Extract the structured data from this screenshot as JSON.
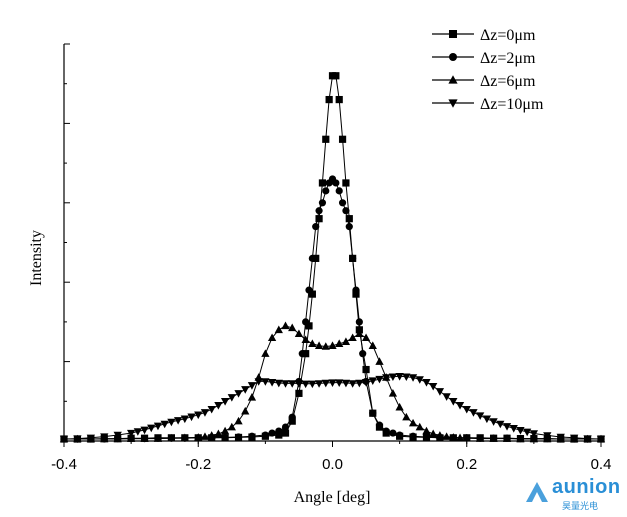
{
  "chart_data": {
    "type": "line",
    "xlabel": "Angle [deg]",
    "ylabel": "Intensity",
    "xlim": [
      -0.4,
      0.4
    ],
    "ylim": [
      0,
      1.0
    ],
    "x_ticks": [
      -0.4,
      -0.2,
      0.0,
      0.2,
      0.4
    ],
    "x_tick_labels": [
      "-0.4",
      "-0.2",
      "0.0",
      "0.2",
      "0.4"
    ],
    "legend_position": "top-right",
    "grid": false,
    "marker_color": "#000000",
    "series": [
      {
        "name": "Δz=0μm",
        "marker": "square",
        "x": [
          -0.4,
          -0.38,
          -0.36,
          -0.34,
          -0.32,
          -0.3,
          -0.28,
          -0.26,
          -0.24,
          -0.22,
          -0.2,
          -0.18,
          -0.16,
          -0.14,
          -0.12,
          -0.1,
          -0.08,
          -0.07,
          -0.06,
          -0.05,
          -0.04,
          -0.035,
          -0.03,
          -0.025,
          -0.02,
          -0.015,
          -0.01,
          -0.005,
          0.0,
          0.005,
          0.01,
          0.015,
          0.02,
          0.025,
          0.03,
          0.035,
          0.04,
          0.05,
          0.06,
          0.07,
          0.08,
          0.1,
          0.12,
          0.14,
          0.16,
          0.18,
          0.2,
          0.22,
          0.24,
          0.26,
          0.28,
          0.3,
          0.32,
          0.34,
          0.36,
          0.38,
          0.4
        ],
        "y": [
          0.005,
          0.005,
          0.005,
          0.006,
          0.006,
          0.007,
          0.007,
          0.008,
          0.008,
          0.008,
          0.008,
          0.008,
          0.008,
          0.009,
          0.01,
          0.012,
          0.015,
          0.02,
          0.05,
          0.12,
          0.22,
          0.29,
          0.37,
          0.46,
          0.56,
          0.65,
          0.76,
          0.86,
          0.92,
          0.92,
          0.86,
          0.76,
          0.65,
          0.56,
          0.46,
          0.37,
          0.28,
          0.18,
          0.07,
          0.035,
          0.02,
          0.012,
          0.01,
          0.009,
          0.008,
          0.008,
          0.008,
          0.008,
          0.007,
          0.007,
          0.006,
          0.006,
          0.006,
          0.005,
          0.005,
          0.005,
          0.005
        ]
      },
      {
        "name": "Δz=2μm",
        "marker": "circle",
        "x": [
          -0.4,
          -0.38,
          -0.36,
          -0.34,
          -0.32,
          -0.3,
          -0.28,
          -0.26,
          -0.24,
          -0.22,
          -0.2,
          -0.18,
          -0.16,
          -0.14,
          -0.12,
          -0.1,
          -0.09,
          -0.08,
          -0.07,
          -0.06,
          -0.05,
          -0.045,
          -0.04,
          -0.035,
          -0.03,
          -0.025,
          -0.02,
          -0.015,
          -0.01,
          -0.005,
          0.0,
          0.005,
          0.01,
          0.015,
          0.02,
          0.025,
          0.03,
          0.035,
          0.04,
          0.045,
          0.05,
          0.06,
          0.07,
          0.08,
          0.09,
          0.1,
          0.12,
          0.14,
          0.16,
          0.18,
          0.2,
          0.22,
          0.24,
          0.26,
          0.28,
          0.3,
          0.32,
          0.34,
          0.36,
          0.38,
          0.4
        ],
        "y": [
          0.005,
          0.005,
          0.005,
          0.005,
          0.006,
          0.006,
          0.006,
          0.007,
          0.007,
          0.007,
          0.008,
          0.008,
          0.009,
          0.01,
          0.012,
          0.015,
          0.02,
          0.025,
          0.035,
          0.06,
          0.15,
          0.22,
          0.3,
          0.38,
          0.46,
          0.54,
          0.58,
          0.6,
          0.63,
          0.65,
          0.66,
          0.65,
          0.63,
          0.6,
          0.58,
          0.54,
          0.46,
          0.38,
          0.3,
          0.22,
          0.15,
          0.07,
          0.04,
          0.025,
          0.02,
          0.015,
          0.012,
          0.01,
          0.009,
          0.008,
          0.008,
          0.007,
          0.007,
          0.007,
          0.006,
          0.006,
          0.006,
          0.005,
          0.005,
          0.005,
          0.005
        ]
      },
      {
        "name": "Δz=6μm",
        "marker": "triangle-up",
        "x": [
          -0.4,
          -0.38,
          -0.36,
          -0.34,
          -0.32,
          -0.3,
          -0.28,
          -0.26,
          -0.24,
          -0.22,
          -0.2,
          -0.19,
          -0.18,
          -0.17,
          -0.16,
          -0.15,
          -0.14,
          -0.13,
          -0.12,
          -0.11,
          -0.1,
          -0.09,
          -0.08,
          -0.07,
          -0.06,
          -0.05,
          -0.04,
          -0.03,
          -0.02,
          -0.01,
          0.0,
          0.01,
          0.02,
          0.03,
          0.04,
          0.05,
          0.06,
          0.07,
          0.08,
          0.09,
          0.1,
          0.11,
          0.12,
          0.13,
          0.14,
          0.15,
          0.16,
          0.17,
          0.18,
          0.19,
          0.2,
          0.22,
          0.24,
          0.26,
          0.28,
          0.3,
          0.32,
          0.34,
          0.36,
          0.38,
          0.4
        ],
        "y": [
          0.005,
          0.005,
          0.005,
          0.005,
          0.005,
          0.006,
          0.006,
          0.006,
          0.007,
          0.008,
          0.009,
          0.011,
          0.014,
          0.018,
          0.025,
          0.035,
          0.05,
          0.075,
          0.11,
          0.16,
          0.22,
          0.26,
          0.28,
          0.29,
          0.285,
          0.27,
          0.255,
          0.245,
          0.24,
          0.238,
          0.24,
          0.245,
          0.25,
          0.26,
          0.27,
          0.26,
          0.24,
          0.2,
          0.16,
          0.12,
          0.085,
          0.06,
          0.045,
          0.035,
          0.025,
          0.018,
          0.014,
          0.011,
          0.009,
          0.008,
          0.007,
          0.006,
          0.006,
          0.006,
          0.005,
          0.005,
          0.005,
          0.005,
          0.005,
          0.005,
          0.005
        ]
      },
      {
        "name": "Δz=10μm",
        "marker": "triangle-down",
        "x": [
          -0.4,
          -0.38,
          -0.36,
          -0.34,
          -0.32,
          -0.3,
          -0.29,
          -0.28,
          -0.27,
          -0.26,
          -0.25,
          -0.24,
          -0.23,
          -0.22,
          -0.21,
          -0.2,
          -0.19,
          -0.18,
          -0.17,
          -0.16,
          -0.15,
          -0.14,
          -0.13,
          -0.12,
          -0.11,
          -0.1,
          -0.09,
          -0.08,
          -0.07,
          -0.06,
          -0.05,
          -0.04,
          -0.03,
          -0.02,
          -0.01,
          0.0,
          0.01,
          0.02,
          0.03,
          0.04,
          0.05,
          0.06,
          0.07,
          0.08,
          0.09,
          0.1,
          0.11,
          0.12,
          0.13,
          0.14,
          0.15,
          0.16,
          0.17,
          0.18,
          0.19,
          0.2,
          0.21,
          0.22,
          0.23,
          0.24,
          0.25,
          0.26,
          0.27,
          0.28,
          0.29,
          0.3,
          0.32,
          0.34,
          0.36,
          0.38,
          0.4
        ],
        "y": [
          0.005,
          0.006,
          0.008,
          0.011,
          0.015,
          0.02,
          0.024,
          0.028,
          0.033,
          0.038,
          0.043,
          0.048,
          0.052,
          0.056,
          0.061,
          0.066,
          0.072,
          0.08,
          0.09,
          0.1,
          0.11,
          0.12,
          0.13,
          0.14,
          0.15,
          0.15,
          0.148,
          0.146,
          0.145,
          0.145,
          0.145,
          0.144,
          0.144,
          0.145,
          0.146,
          0.147,
          0.147,
          0.146,
          0.145,
          0.146,
          0.148,
          0.152,
          0.156,
          0.16,
          0.162,
          0.163,
          0.162,
          0.16,
          0.155,
          0.148,
          0.138,
          0.125,
          0.112,
          0.1,
          0.09,
          0.08,
          0.072,
          0.064,
          0.056,
          0.049,
          0.043,
          0.037,
          0.032,
          0.027,
          0.023,
          0.019,
          0.014,
          0.01,
          0.008,
          0.006,
          0.005
        ]
      }
    ]
  },
  "watermark": {
    "brand": "aunion",
    "sub": "昊量光电"
  }
}
